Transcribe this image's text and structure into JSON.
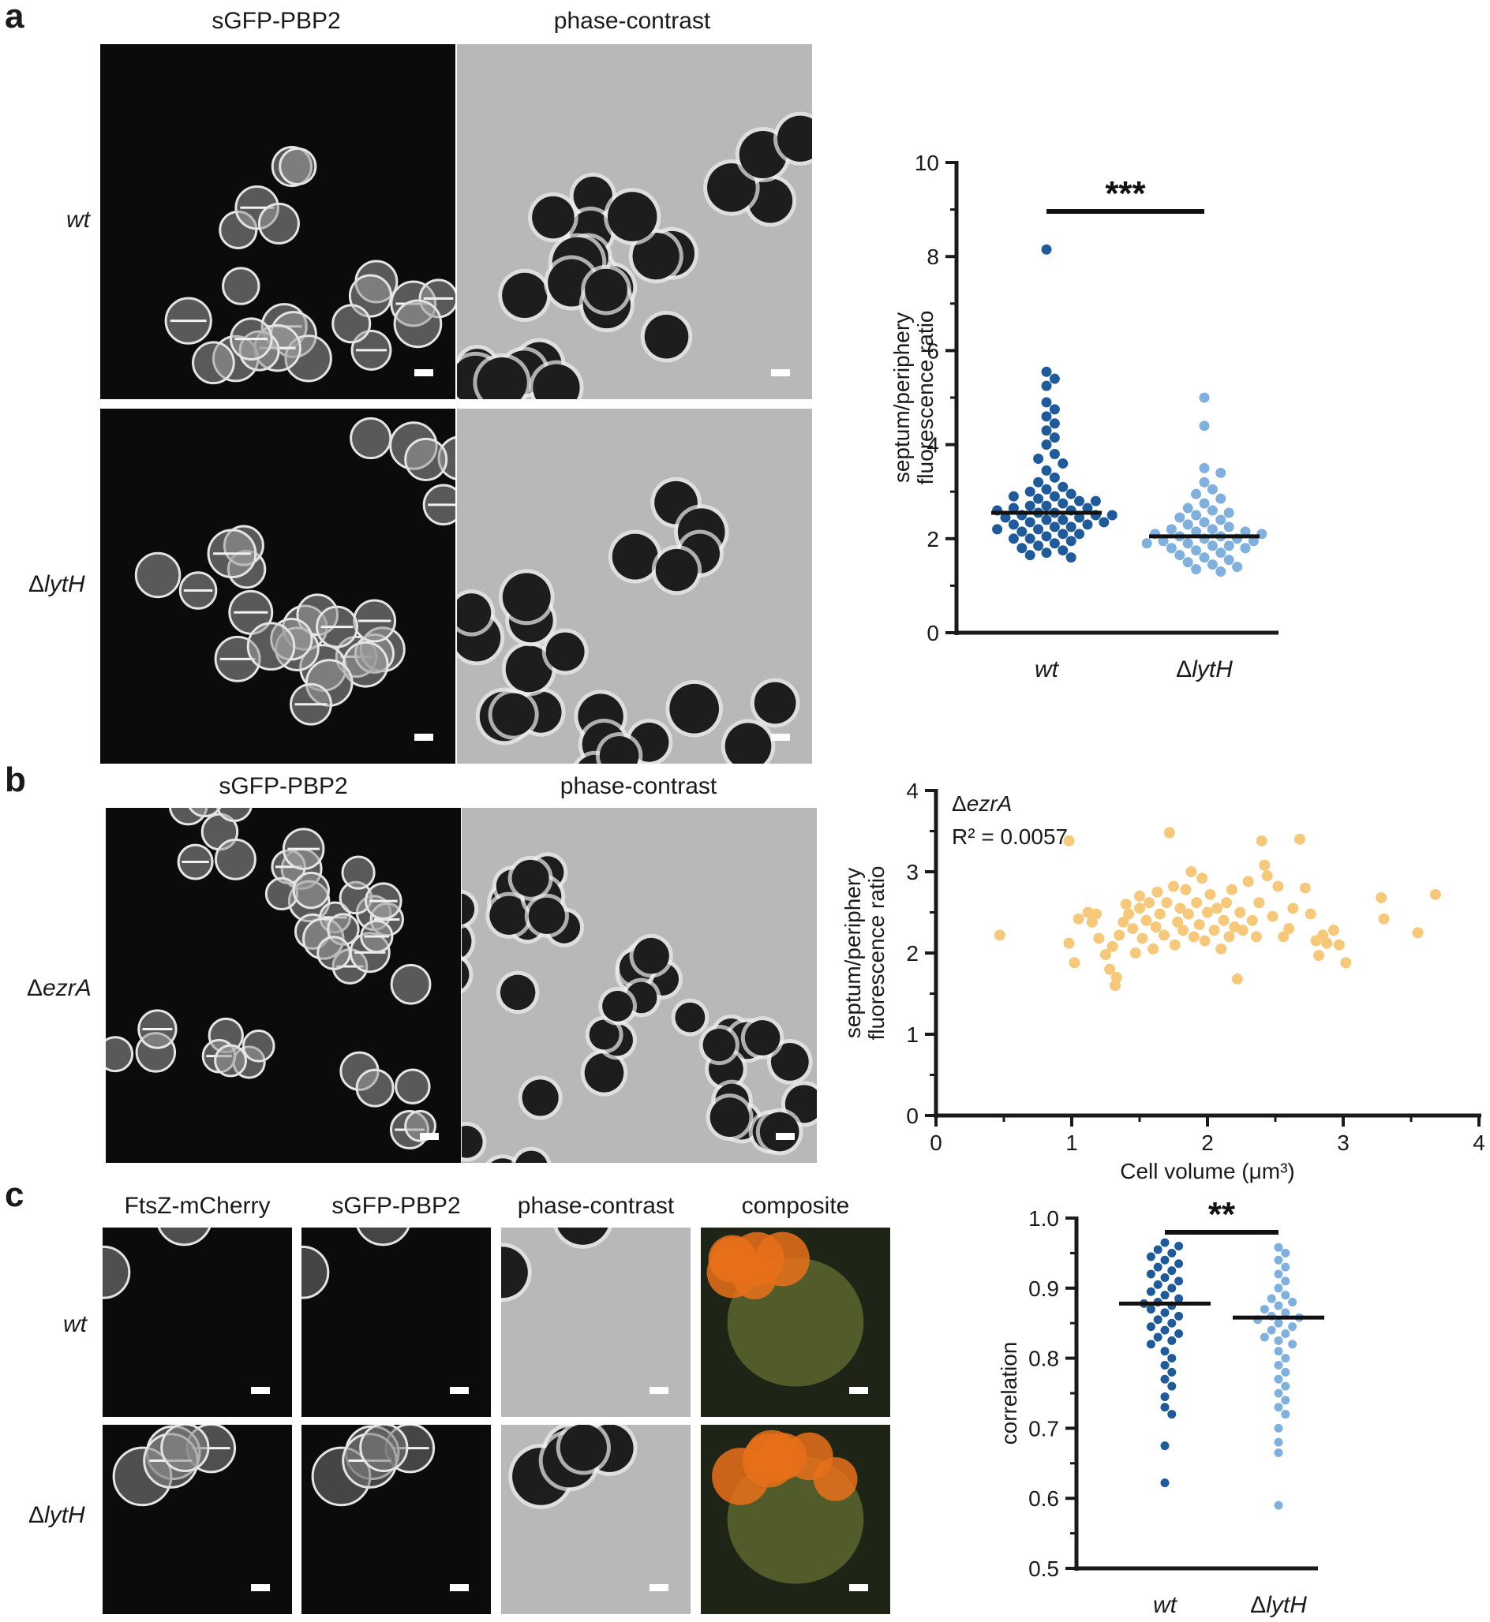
{
  "panels": {
    "a": {
      "letter": "a",
      "col_headers": [
        "sGFP-PBP2",
        "phase-contrast"
      ],
      "row_labels": [
        "wt",
        "lytH"
      ],
      "row_label_prefix": [
        "",
        "Δ"
      ]
    },
    "b": {
      "letter": "b",
      "col_headers": [
        "sGFP-PBP2",
        "phase-contrast"
      ],
      "row_label": "ezrA",
      "row_label_prefix": "Δ"
    },
    "c": {
      "letter": "c",
      "col_headers": [
        "FtsZ-mCherry",
        "sGFP-PBP2",
        "phase-contrast",
        "composite"
      ],
      "row_labels": [
        "wt",
        "lytH"
      ],
      "row_label_prefix": [
        "",
        "Δ"
      ]
    }
  },
  "colors": {
    "wt_dark_blue": "#1f5a9a",
    "lytH_light_blue": "#7fb0de",
    "ezrA_yellow": "#f6c97a",
    "axis": "#1a1a1a"
  },
  "chart_data": [
    {
      "id": "a",
      "type": "scatter",
      "subtype": "dot-plot",
      "ylabel": "septum/periphery fluorescence ratio",
      "ylim": [
        0,
        10
      ],
      "yticks": [
        0,
        2,
        4,
        6,
        8,
        10
      ],
      "categories": [
        "wt",
        "ΔlytH"
      ],
      "significance": "***",
      "series": [
        {
          "name": "wt",
          "median": 2.55,
          "max": 8.15,
          "min": 1.6,
          "values": [
            8.15,
            5.55,
            5.4,
            5.25,
            4.9,
            4.75,
            4.6,
            4.45,
            4.3,
            4.15,
            4.0,
            3.8,
            3.7,
            3.6,
            3.45,
            3.3,
            3.2,
            3.1,
            3.05,
            3.0,
            2.95,
            2.9,
            2.9,
            2.85,
            2.8,
            2.8,
            2.75,
            2.7,
            2.7,
            2.65,
            2.65,
            2.6,
            2.6,
            2.55,
            2.55,
            2.5,
            2.5,
            2.5,
            2.45,
            2.45,
            2.4,
            2.4,
            2.35,
            2.35,
            2.3,
            2.3,
            2.25,
            2.25,
            2.2,
            2.2,
            2.15,
            2.1,
            2.1,
            2.05,
            2.0,
            2.0,
            1.95,
            1.9,
            1.85,
            1.8,
            1.75,
            1.7,
            1.65,
            1.6
          ]
        },
        {
          "name": "ΔlytH",
          "median": 2.05,
          "max": 5.0,
          "min": 1.3,
          "values": [
            5.0,
            4.4,
            3.5,
            3.4,
            3.2,
            3.05,
            2.95,
            2.85,
            2.75,
            2.65,
            2.6,
            2.55,
            2.5,
            2.45,
            2.4,
            2.35,
            2.3,
            2.25,
            2.2,
            2.2,
            2.15,
            2.15,
            2.1,
            2.1,
            2.05,
            2.05,
            2.0,
            2.0,
            1.95,
            1.95,
            1.9,
            1.9,
            1.85,
            1.85,
            1.8,
            1.8,
            1.75,
            1.7,
            1.65,
            1.6,
            1.55,
            1.5,
            1.45,
            1.4,
            1.35,
            1.3
          ]
        }
      ]
    },
    {
      "id": "b",
      "type": "scatter",
      "annotation_label": "ezrA",
      "annotation_prefix": "Δ",
      "annotation_r2": "R² = 0.0057",
      "xlabel": "Cell volume (μm³)",
      "ylabel": "septum/periphery fluorescence ratio",
      "xlim": [
        0,
        4
      ],
      "ylim": [
        0,
        4
      ],
      "xticks": [
        0,
        1,
        2,
        3,
        4
      ],
      "yticks": [
        0,
        1,
        2,
        3,
        4
      ],
      "points": [
        [
          0.47,
          2.22
        ],
        [
          0.98,
          3.38
        ],
        [
          1.02,
          1.88
        ],
        [
          0.98,
          2.12
        ],
        [
          1.05,
          2.42
        ],
        [
          1.12,
          2.5
        ],
        [
          1.15,
          2.38
        ],
        [
          1.18,
          2.48
        ],
        [
          1.2,
          2.18
        ],
        [
          1.25,
          1.98
        ],
        [
          1.28,
          1.8
        ],
        [
          1.32,
          1.6
        ],
        [
          1.33,
          1.7
        ],
        [
          1.3,
          2.08
        ],
        [
          1.35,
          2.22
        ],
        [
          1.38,
          2.38
        ],
        [
          1.4,
          2.6
        ],
        [
          1.42,
          2.48
        ],
        [
          1.45,
          2.3
        ],
        [
          1.47,
          2.0
        ],
        [
          1.5,
          2.55
        ],
        [
          1.5,
          2.7
        ],
        [
          1.52,
          2.18
        ],
        [
          1.55,
          2.4
        ],
        [
          1.57,
          2.62
        ],
        [
          1.6,
          2.05
        ],
        [
          1.62,
          2.32
        ],
        [
          1.63,
          2.75
        ],
        [
          1.65,
          2.48
        ],
        [
          1.68,
          2.22
        ],
        [
          1.7,
          2.62
        ],
        [
          1.72,
          3.48
        ],
        [
          1.75,
          2.82
        ],
        [
          1.76,
          2.1
        ],
        [
          1.78,
          2.38
        ],
        [
          1.8,
          2.55
        ],
        [
          1.82,
          2.28
        ],
        [
          1.84,
          2.78
        ],
        [
          1.86,
          2.48
        ],
        [
          1.88,
          3.0
        ],
        [
          1.9,
          2.2
        ],
        [
          1.92,
          2.62
        ],
        [
          1.94,
          2.35
        ],
        [
          1.96,
          2.92
        ],
        [
          1.98,
          2.15
        ],
        [
          2.0,
          2.5
        ],
        [
          2.02,
          2.72
        ],
        [
          2.05,
          2.28
        ],
        [
          2.07,
          2.55
        ],
        [
          2.1,
          2.05
        ],
        [
          2.12,
          2.4
        ],
        [
          2.14,
          2.62
        ],
        [
          2.16,
          2.2
        ],
        [
          2.18,
          2.78
        ],
        [
          2.2,
          2.32
        ],
        [
          2.22,
          1.68
        ],
        [
          2.24,
          2.5
        ],
        [
          2.26,
          2.28
        ],
        [
          2.3,
          2.88
        ],
        [
          2.33,
          2.4
        ],
        [
          2.36,
          2.2
        ],
        [
          2.38,
          2.62
        ],
        [
          2.4,
          3.38
        ],
        [
          2.42,
          3.08
        ],
        [
          2.44,
          2.95
        ],
        [
          2.48,
          2.45
        ],
        [
          2.52,
          2.82
        ],
        [
          2.56,
          2.2
        ],
        [
          2.6,
          2.3
        ],
        [
          2.63,
          2.55
        ],
        [
          2.68,
          3.4
        ],
        [
          2.72,
          2.8
        ],
        [
          2.76,
          2.48
        ],
        [
          2.8,
          2.15
        ],
        [
          2.85,
          2.22
        ],
        [
          2.88,
          2.12
        ],
        [
          2.93,
          2.28
        ],
        [
          2.97,
          2.1
        ],
        [
          3.02,
          1.88
        ],
        [
          3.28,
          2.68
        ],
        [
          3.3,
          2.42
        ],
        [
          3.55,
          2.25
        ],
        [
          3.68,
          2.72
        ],
        [
          2.82,
          1.97
        ]
      ]
    },
    {
      "id": "c",
      "type": "scatter",
      "subtype": "dot-plot",
      "ylabel": "correlation",
      "ylim": [
        0.5,
        1.0
      ],
      "yticks": [
        0.5,
        0.6,
        0.7,
        0.8,
        0.9,
        1.0
      ],
      "categories": [
        "wt",
        "ΔlytH"
      ],
      "significance": "**",
      "series": [
        {
          "name": "wt",
          "median": 0.878,
          "max": 0.965,
          "min": 0.622,
          "values": [
            0.965,
            0.96,
            0.955,
            0.95,
            0.945,
            0.94,
            0.935,
            0.93,
            0.925,
            0.92,
            0.915,
            0.91,
            0.905,
            0.9,
            0.895,
            0.89,
            0.885,
            0.88,
            0.878,
            0.875,
            0.87,
            0.865,
            0.86,
            0.855,
            0.85,
            0.845,
            0.84,
            0.835,
            0.83,
            0.825,
            0.82,
            0.81,
            0.8,
            0.79,
            0.78,
            0.77,
            0.76,
            0.745,
            0.73,
            0.72,
            0.675,
            0.622
          ]
        },
        {
          "name": "ΔlytH",
          "median": 0.858,
          "max": 0.958,
          "min": 0.59,
          "values": [
            0.958,
            0.95,
            0.94,
            0.93,
            0.92,
            0.91,
            0.9,
            0.89,
            0.885,
            0.88,
            0.875,
            0.87,
            0.865,
            0.86,
            0.858,
            0.855,
            0.85,
            0.845,
            0.84,
            0.835,
            0.83,
            0.825,
            0.82,
            0.81,
            0.8,
            0.79,
            0.78,
            0.77,
            0.76,
            0.75,
            0.74,
            0.73,
            0.72,
            0.7,
            0.68,
            0.665,
            0.59
          ]
        }
      ]
    }
  ]
}
